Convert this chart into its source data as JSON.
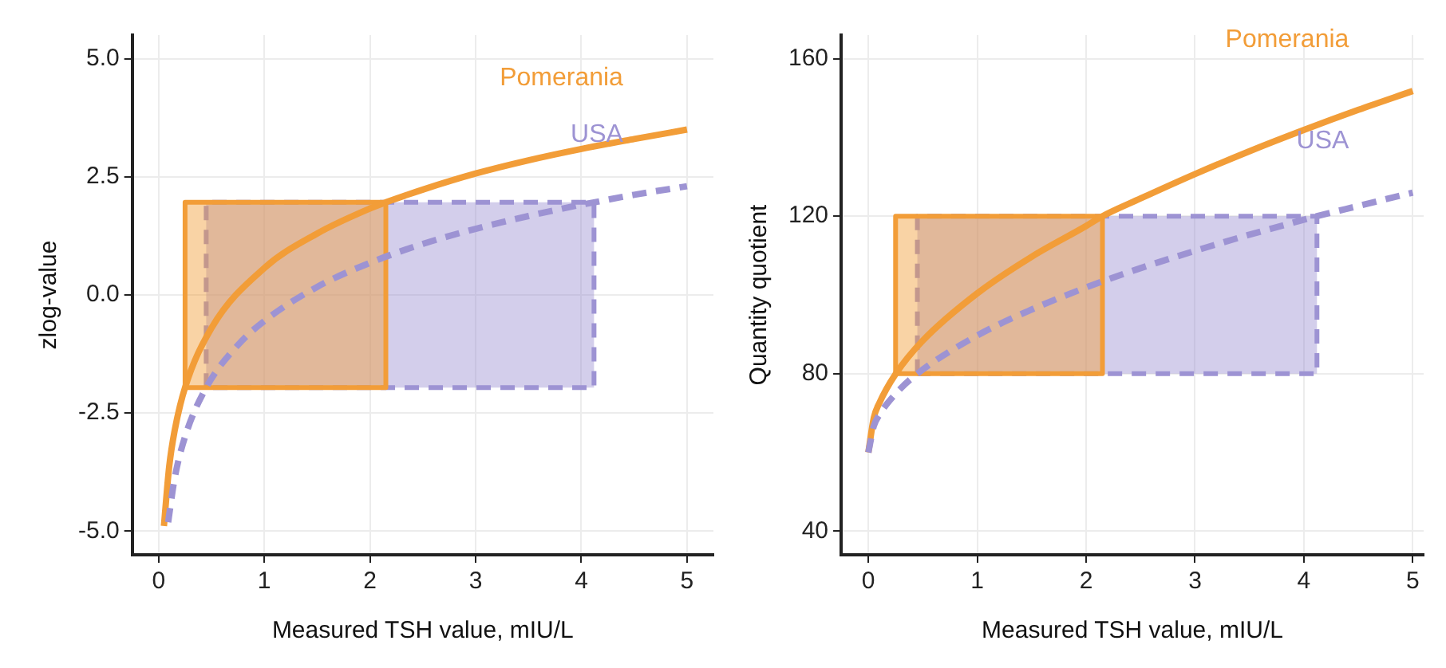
{
  "chart_data": [
    {
      "type": "line",
      "xlabel": "Measured TSH value, mIU/L",
      "ylabel": "zlog-value",
      "xlim": [
        -0.25,
        5.25
      ],
      "xticks": [
        0,
        1,
        2,
        3,
        4,
        5
      ],
      "ylim": [
        -5.5,
        5.5
      ],
      "yticks": [
        {
          "value": -5,
          "label": "-5.0"
        },
        {
          "value": -2.5,
          "label": "-2.5"
        },
        {
          "value": 0,
          "label": "0.0"
        },
        {
          "value": 2.5,
          "label": "2.5"
        },
        {
          "value": 5,
          "label": "5.0"
        }
      ],
      "grid": true,
      "legend": false,
      "marker": "none",
      "series": [
        {
          "type": "area",
          "color": "#f29d38",
          "line_style": "solid",
          "x": [
            0.25,
            0.25,
            2.15,
            2.15,
            0.25
          ],
          "values": [
            -1.96,
            1.96,
            1.96,
            -1.96,
            -1.96
          ]
        },
        {
          "type": "area",
          "color": "#9d93d3",
          "line_style": "dashed",
          "x": [
            0.45,
            0.45,
            4.12,
            4.12,
            0.45
          ],
          "values": [
            -1.96,
            1.96,
            1.96,
            -1.96,
            -1.96
          ]
        },
        {
          "name": "USA",
          "color": "#9d93d3",
          "line_style": "dashed",
          "x": [
            0.09,
            0.15,
            0.25,
            0.45,
            0.75,
            1,
            1.5,
            2,
            2.5,
            3,
            3.5,
            4,
            4.12,
            4.5,
            5
          ],
          "values": [
            -4.81,
            -3.9,
            -3.0,
            -1.96,
            -1.06,
            -0.55,
            0.17,
            0.68,
            1.08,
            1.4,
            1.67,
            1.91,
            1.96,
            2.12,
            2.3
          ]
        },
        {
          "name": "Pomerania",
          "color": "#f29d38",
          "line_style": "solid",
          "x": [
            0.05,
            0.1,
            0.15,
            0.25,
            0.5,
            1,
            1.5,
            2,
            2.15,
            2.5,
            3,
            3.5,
            4,
            4.5,
            5
          ],
          "values": [
            -4.89,
            -3.63,
            -2.89,
            -1.96,
            -0.7,
            0.57,
            1.3,
            1.83,
            1.96,
            2.23,
            2.57,
            2.85,
            3.09,
            3.3,
            3.5
          ]
        }
      ]
    },
    {
      "type": "line",
      "xlabel": "Measured TSH value, mIU/L",
      "ylabel": "Quantity quotient",
      "xlim": [
        -0.25,
        5.1
      ],
      "xticks": [
        0,
        1,
        2,
        3,
        4,
        5
      ],
      "ylim": [
        34,
        166
      ],
      "yticks": [
        40,
        80,
        120,
        160
      ],
      "grid": true,
      "legend": false,
      "marker": "none",
      "series": [
        {
          "type": "area",
          "color": "#f29d38",
          "line_style": "solid",
          "x": [
            0.25,
            0.25,
            2.15,
            2.15,
            0.25
          ],
          "values": [
            80,
            120,
            120,
            80,
            80
          ]
        },
        {
          "type": "area",
          "color": "#9d93d3",
          "line_style": "dashed",
          "x": [
            0.45,
            0.45,
            4.12,
            4.12,
            0.45
          ],
          "values": [
            80,
            120,
            120,
            80,
            80
          ]
        },
        {
          "name": "USA",
          "color": "#9d93d3",
          "line_style": "dashed",
          "x": [
            0,
            0.05,
            0.1,
            0.25,
            0.45,
            1,
            1.5,
            2,
            2.5,
            3,
            3.5,
            4,
            4.12,
            4.5,
            5
          ],
          "values": [
            60,
            66.7,
            69.5,
            74.9,
            80,
            89.7,
            96.3,
            101.9,
            106.8,
            111.2,
            115.3,
            119.1,
            120,
            122.6,
            126
          ]
        },
        {
          "name": "Pomerania",
          "color": "#f29d38",
          "line_style": "solid",
          "x": [
            0,
            0.05,
            0.1,
            0.25,
            0.5,
            1,
            1.5,
            2,
            2.15,
            2.5,
            3,
            3.5,
            4,
            4.5,
            5
          ],
          "values": [
            60,
            68.8,
            72.5,
            79.9,
            88.4,
            100.4,
            109.7,
            117.5,
            120,
            124.5,
            130.7,
            136.5,
            141.9,
            147,
            151.8
          ]
        }
      ]
    }
  ]
}
